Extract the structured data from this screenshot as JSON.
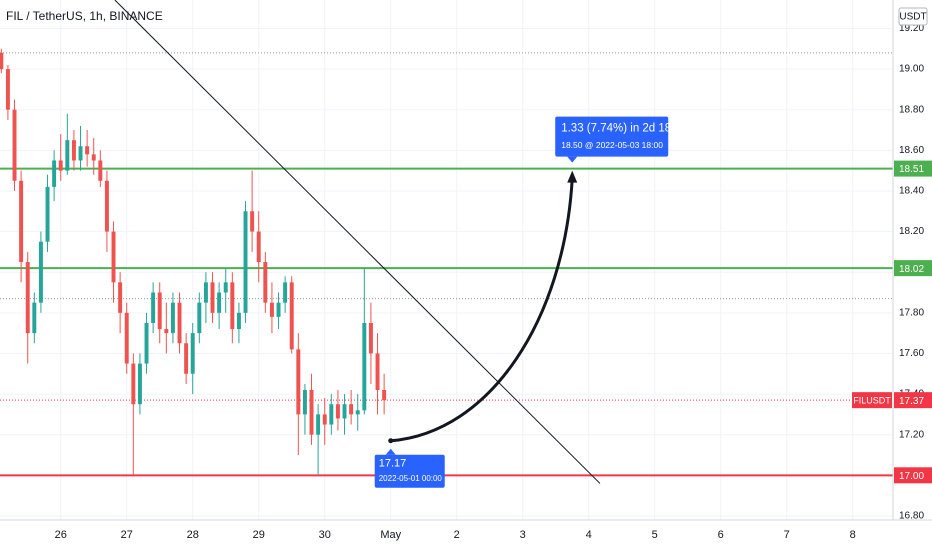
{
  "chart_data": {
    "type": "candlestick",
    "title": "FIL / TetherUS, 1h, BINANCE",
    "currency": "USDT",
    "up_color": "#26a69a",
    "down_color": "#ef5350",
    "grid": true,
    "x": [
      25.1,
      25.2,
      25.3,
      25.4,
      25.5,
      25.6,
      25.7,
      25.8,
      25.9,
      26.0,
      26.1,
      26.2,
      26.3,
      26.4,
      26.5,
      26.6,
      26.7,
      26.8,
      26.9,
      27.0,
      27.1,
      27.2,
      27.3,
      27.4,
      27.5,
      27.6,
      27.7,
      27.8,
      27.9,
      28.0,
      28.1,
      28.2,
      28.3,
      28.4,
      28.5,
      28.6,
      28.7,
      28.8,
      28.9,
      29.0,
      29.1,
      29.2,
      29.3,
      29.4,
      29.5,
      29.6,
      29.7,
      29.8,
      29.9,
      30.0,
      30.1,
      30.2,
      30.3,
      30.4,
      30.5,
      30.6,
      30.7,
      30.8,
      30.9
    ],
    "open": [
      19.08,
      19.0,
      18.8,
      18.45,
      18.05,
      17.7,
      17.85,
      18.15,
      18.42,
      18.55,
      18.5,
      18.65,
      18.55,
      18.62,
      18.58,
      18.55,
      18.45,
      18.2,
      17.95,
      17.8,
      17.55,
      17.35,
      17.55,
      17.75,
      17.9,
      17.72,
      17.7,
      17.85,
      17.65,
      17.5,
      17.7,
      17.85,
      17.95,
      17.8,
      17.9,
      17.95,
      17.72,
      17.8,
      18.3,
      18.2,
      18.05,
      17.85,
      17.78,
      17.85,
      17.95,
      17.62,
      17.3,
      17.42,
      17.2,
      17.3,
      17.25,
      17.35,
      17.28,
      17.35,
      17.3,
      17.32,
      17.75,
      17.6,
      17.42
    ],
    "high": [
      19.1,
      19.02,
      18.85,
      18.5,
      18.1,
      17.9,
      18.2,
      18.48,
      18.6,
      18.68,
      18.78,
      18.7,
      18.72,
      18.7,
      18.66,
      18.6,
      18.5,
      18.25,
      18.0,
      17.85,
      17.6,
      17.6,
      17.8,
      17.95,
      17.95,
      17.85,
      17.9,
      17.9,
      17.7,
      17.75,
      17.9,
      18.0,
      18.0,
      17.95,
      18.02,
      18.0,
      17.85,
      18.35,
      18.5,
      18.3,
      18.1,
      17.95,
      17.9,
      17.98,
      17.98,
      17.7,
      17.45,
      17.5,
      17.35,
      17.38,
      17.4,
      17.42,
      17.4,
      17.42,
      17.4,
      18.02,
      17.85,
      17.7,
      17.5
    ],
    "low": [
      18.98,
      18.75,
      18.4,
      17.95,
      17.55,
      17.65,
      17.8,
      18.1,
      18.35,
      18.45,
      18.48,
      18.5,
      18.5,
      18.52,
      18.48,
      18.42,
      18.1,
      17.85,
      17.7,
      17.5,
      17.0,
      17.3,
      17.5,
      17.7,
      17.65,
      17.6,
      17.65,
      17.6,
      17.45,
      17.4,
      17.65,
      17.75,
      17.75,
      17.72,
      17.8,
      17.65,
      17.65,
      17.75,
      18.1,
      17.95,
      17.8,
      17.7,
      17.72,
      17.8,
      17.6,
      17.1,
      17.2,
      17.15,
      17.0,
      17.15,
      17.2,
      17.22,
      17.2,
      17.25,
      17.22,
      17.3,
      17.45,
      17.3,
      17.3
    ],
    "close": [
      19.0,
      18.8,
      18.45,
      18.05,
      17.7,
      17.85,
      18.15,
      18.42,
      18.55,
      18.5,
      18.65,
      18.55,
      18.62,
      18.58,
      18.55,
      18.45,
      18.2,
      17.95,
      17.8,
      17.55,
      17.35,
      17.55,
      17.75,
      17.9,
      17.72,
      17.7,
      17.85,
      17.65,
      17.5,
      17.7,
      17.85,
      17.95,
      17.8,
      17.9,
      17.95,
      17.72,
      17.8,
      18.3,
      18.2,
      18.05,
      17.85,
      17.78,
      17.85,
      17.95,
      17.62,
      17.3,
      17.42,
      17.2,
      17.3,
      17.25,
      17.35,
      17.28,
      17.35,
      17.3,
      17.32,
      17.75,
      17.6,
      17.42,
      17.37
    ],
    "xlim": [
      25.08,
      38.61
    ],
    "xticks": [
      26,
      27,
      28,
      29,
      30,
      {
        "value": 31,
        "label": "May"
      },
      {
        "value": 32,
        "label": "2"
      },
      {
        "value": 33,
        "label": "3"
      },
      {
        "value": 34,
        "label": "4"
      },
      {
        "value": 35,
        "label": "5"
      },
      {
        "value": 36,
        "label": "6"
      },
      {
        "value": 37,
        "label": "7"
      },
      {
        "value": 38,
        "label": "8"
      }
    ],
    "ylim": [
      16.78,
      19.34
    ],
    "yticks": [
      {
        "value": 16.8,
        "label": "16.80"
      },
      {
        "value": 17,
        "label": "17.00"
      },
      {
        "value": 17.2,
        "label": "17.20"
      },
      {
        "value": 17.4,
        "label": "17.40"
      },
      {
        "value": 17.6,
        "label": "17.60"
      },
      {
        "value": 17.8,
        "label": "17.80"
      },
      {
        "value": 18,
        "label": "18.00"
      },
      {
        "value": 18.2,
        "label": "18.20"
      },
      {
        "value": 18.4,
        "label": "18.40"
      },
      {
        "value": 18.6,
        "label": "18.60"
      },
      {
        "value": 18.8,
        "label": "18.80"
      },
      {
        "value": 19,
        "label": "19.00"
      },
      {
        "value": 19.2,
        "label": "19.20"
      }
    ],
    "levels": [
      {
        "value": 18.51,
        "color": "#4caf50"
      },
      {
        "value": 18.02,
        "color": "#4caf50"
      },
      {
        "value": 17,
        "label": "17.00",
        "color": "#f23645"
      }
    ],
    "dotted_levels": [
      19.08,
      17.87
    ],
    "current_price": {
      "symbol": "FILUSDT",
      "value": 17.37,
      "color": "#f23645"
    },
    "trend_line": {
      "x": [
        26.82,
        34.17
      ],
      "y": [
        19.34,
        16.96
      ]
    },
    "projection": {
      "color": "#2962ff",
      "start": {
        "x": 31,
        "y": 17.17,
        "date": "2022-05-01 00:00"
      },
      "end": {
        "x": 33.75,
        "y": 18.5,
        "label": "1.33 (7.74%) in 2d 18h",
        "detail": "18.50 @ 2022-05-03  18:00"
      }
    }
  }
}
